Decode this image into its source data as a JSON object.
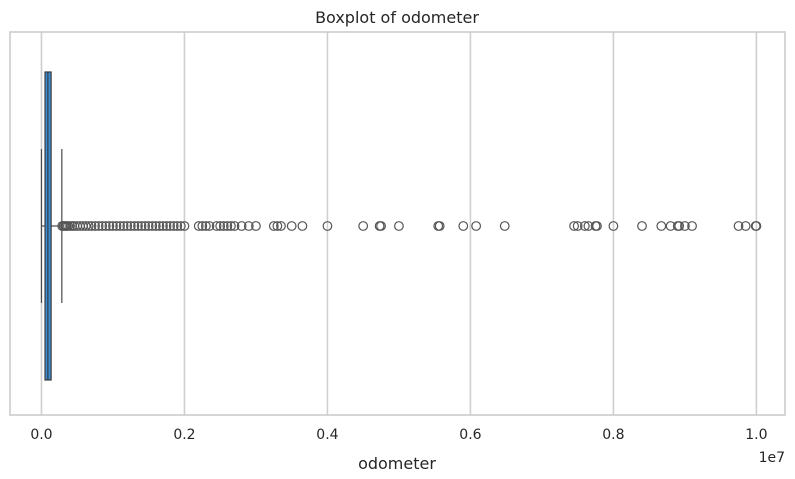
{
  "chart_data": {
    "type": "boxplot",
    "orientation": "horizontal",
    "title": "Boxplot of odometer",
    "xlabel": "odometer",
    "ylabel": "",
    "x_offset_label": "1e7",
    "xlim": [
      -0.044,
      1.04
    ],
    "x_ticks": [
      0.0,
      0.2,
      0.4,
      0.6,
      0.8,
      1.0
    ],
    "x_tick_labels": [
      "0.0",
      "0.2",
      "0.4",
      "0.6",
      "0.8",
      "1.0"
    ],
    "grid": {
      "x": true,
      "y": false
    },
    "box": {
      "whisker_low": 0.0,
      "q1": 0.005,
      "median": 0.009,
      "q3": 0.0135,
      "whisker_high": 0.0285,
      "fill_color": "#3a8ed6"
    },
    "fliers": [
      0.029,
      0.031,
      0.033,
      0.035,
      0.037,
      0.04,
      0.043,
      0.046,
      0.05,
      0.054,
      0.058,
      0.062,
      0.066,
      0.07,
      0.075,
      0.08,
      0.085,
      0.09,
      0.095,
      0.1,
      0.105,
      0.11,
      0.115,
      0.12,
      0.125,
      0.13,
      0.135,
      0.14,
      0.145,
      0.15,
      0.155,
      0.16,
      0.165,
      0.17,
      0.175,
      0.18,
      0.185,
      0.19,
      0.195,
      0.2,
      0.22,
      0.225,
      0.23,
      0.235,
      0.245,
      0.25,
      0.255,
      0.26,
      0.265,
      0.27,
      0.28,
      0.29,
      0.3,
      0.325,
      0.33,
      0.335,
      0.35,
      0.365,
      0.4,
      0.45,
      0.473,
      0.475,
      0.5,
      0.555,
      0.557,
      0.59,
      0.608,
      0.648,
      0.745,
      0.75,
      0.76,
      0.765,
      0.775,
      0.777,
      0.8,
      0.84,
      0.867,
      0.88,
      0.89,
      0.892,
      0.9,
      0.91,
      0.975,
      0.985,
      0.999,
      1.0
    ],
    "colors": {
      "box_fill": "#3a8ed6",
      "box_edge": "#3a3a3a",
      "flier_edge": "#555555",
      "grid": "#cfcfcf"
    }
  }
}
